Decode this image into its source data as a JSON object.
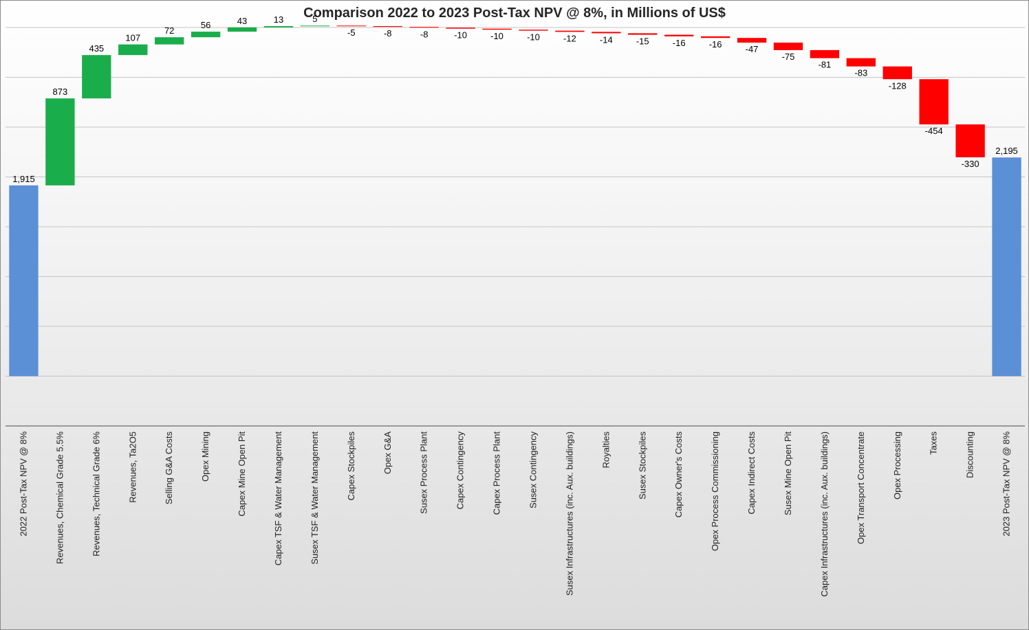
{
  "chart_data": {
    "type": "bar",
    "subtype": "waterfall",
    "title": "Comparison 2022 to 2023 Post-Tax NPV @ 8%, in Millions of US$",
    "xlabel": "",
    "ylabel": "",
    "grid": true,
    "categories": [
      "2022 Post-Tax NPV @ 8%",
      "Revenues, Chemical Grade 5.5%",
      "Revenues, Technical Grade 6%",
      "Revenues, Ta2O5",
      "Selling G&A Costs",
      "Opex Mining",
      "Capex Mine Open Pit",
      "Capex TSF & Water Management",
      "Susex TSF & Water Management",
      "Capex Stockpiles",
      "Opex G&A",
      "Susex Process Plant",
      "Capex Contingency",
      "Capex Process Plant",
      "Susex Contingency",
      "Susex Infrastructures (inc. Aux. buildings)",
      "Royalties",
      "Susex Stockpiles",
      "Capex Owner's Costs",
      "Opex Process Commissioning",
      "Capex Indirect Costs",
      "Susex Mine Open Pit",
      "Capex Infrastructures (inc. Aux. buildings)",
      "Opex Transport Concentrate",
      "Opex Processing",
      "Taxes",
      "Discounting",
      "2023 Post-Tax NPV @ 8%"
    ],
    "values": [
      1915,
      873,
      435,
      107,
      72,
      56,
      43,
      13,
      5,
      -5,
      -8,
      -8,
      -10,
      -10,
      -10,
      -12,
      -14,
      -15,
      -16,
      -16,
      -47,
      -75,
      -81,
      -83,
      -128,
      -454,
      -330,
      2195
    ],
    "labels": [
      "1,915",
      "873",
      "435",
      "107",
      "72",
      "56",
      "43",
      "13",
      "5",
      "-5",
      "-8",
      "-8",
      "-10",
      "-10",
      "-10",
      "-12",
      "-14",
      "-15",
      "-16",
      "-16",
      "-47",
      "-75",
      "-81",
      "-83",
      "-128",
      "-454",
      "-330",
      "2,195"
    ],
    "kinds": [
      "total",
      "delta",
      "delta",
      "delta",
      "delta",
      "delta",
      "delta",
      "delta",
      "delta",
      "delta",
      "delta",
      "delta",
      "delta",
      "delta",
      "delta",
      "delta",
      "delta",
      "delta",
      "delta",
      "delta",
      "delta",
      "delta",
      "delta",
      "delta",
      "delta",
      "delta",
      "delta",
      "total"
    ],
    "ylim": [
      -500,
      3500
    ],
    "colors": {
      "total": "#5b8fd6",
      "increase": "#1aad4b",
      "decrease": "#ff0000"
    }
  }
}
